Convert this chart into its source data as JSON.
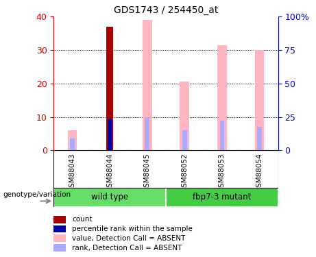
{
  "title": "GDS1743 / 254450_at",
  "samples": [
    "GSM88043",
    "GSM88044",
    "GSM88045",
    "GSM88052",
    "GSM88053",
    "GSM88054"
  ],
  "group_labels": [
    "wild type",
    "fbp7-3 mutant"
  ],
  "count_values": [
    0,
    37,
    0,
    0,
    0,
    0
  ],
  "percentile_values": [
    0,
    9.5,
    0,
    0,
    0,
    0
  ],
  "value_absent": [
    6,
    0,
    39,
    20.5,
    31.5,
    30
  ],
  "rank_absent": [
    3.5,
    0,
    10,
    6,
    9,
    7
  ],
  "ylim_left": [
    0,
    40
  ],
  "ylim_right": [
    0,
    100
  ],
  "yticks_left": [
    0,
    10,
    20,
    30,
    40
  ],
  "yticks_right": [
    0,
    25,
    50,
    75,
    100
  ],
  "ytick_labels_right": [
    "0",
    "25",
    "50",
    "75",
    "100%"
  ],
  "count_color": "#AA0000",
  "percentile_color": "#0000AA",
  "value_absent_color": "#FFB6C1",
  "rank_absent_color": "#AAAAFF",
  "bg_color": "#ffffff",
  "left_axis_color": "#CC0000",
  "right_axis_color": "#0000CC",
  "sample_bg_color": "#C8C8C8",
  "group1_color": "#66DD66",
  "group2_color": "#44CC44",
  "genotype_label": "genotype/variation",
  "legend_items": [
    {
      "color": "#AA0000",
      "label": "count"
    },
    {
      "color": "#0000AA",
      "label": "percentile rank within the sample"
    },
    {
      "color": "#FFB6C1",
      "label": "value, Detection Call = ABSENT"
    },
    {
      "color": "#AAAAFF",
      "label": "rank, Detection Call = ABSENT"
    }
  ]
}
